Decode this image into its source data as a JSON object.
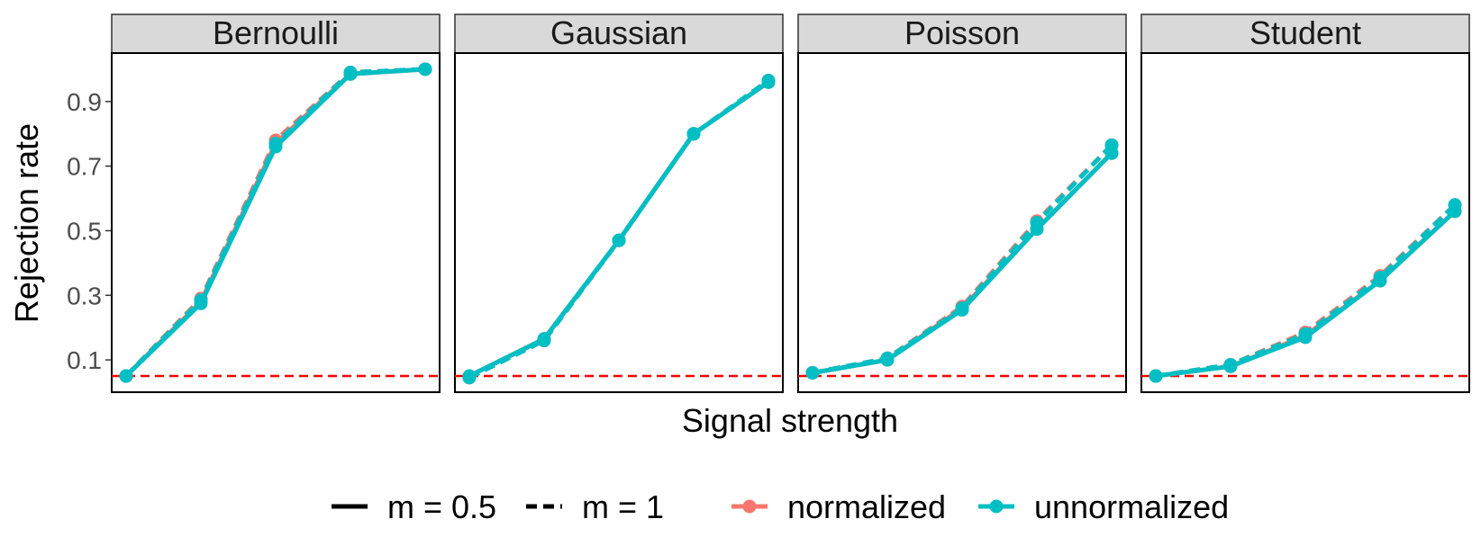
{
  "chart_data": {
    "type": "line",
    "ylabel": "Rejection rate",
    "xlabel": "Signal strength",
    "ylim": [
      0,
      1.05
    ],
    "yticks": [
      0.1,
      0.3,
      0.5,
      0.7,
      0.9
    ],
    "ytick_labels": [
      "0.1",
      "0.3",
      "0.5",
      "0.7",
      "0.9"
    ],
    "reference_line": {
      "y": 0.05,
      "color": "#ff0000",
      "style": "dashed"
    },
    "grid": false,
    "legend_position": "bottom",
    "legend": {
      "linetype": [
        {
          "label": "m = 0.5",
          "style": "solid"
        },
        {
          "label": "m = 1",
          "style": "dashed"
        }
      ],
      "color": [
        {
          "label": "normalized",
          "color": "#f8766d"
        },
        {
          "label": "unnormalized",
          "color": "#00bfc4"
        }
      ]
    },
    "colors": {
      "normalized": "#f8766d",
      "unnormalized": "#00bfc4",
      "strip_bg": "#d9d9d9"
    },
    "panels": [
      {
        "name": "Bernoulli",
        "x": [
          1,
          2,
          3,
          4,
          5
        ],
        "series": [
          {
            "name": "normalized, m = 0.5",
            "method": "normalized",
            "m": "0.5",
            "values": [
              0.05,
              0.28,
              0.77,
              0.985,
              1.0
            ]
          },
          {
            "name": "normalized, m = 1",
            "method": "normalized",
            "m": "1",
            "values": [
              0.05,
              0.29,
              0.78,
              0.99,
              1.0
            ]
          },
          {
            "name": "unnormalized, m = 0.5",
            "method": "unnormalized",
            "m": "0.5",
            "values": [
              0.05,
              0.275,
              0.76,
              0.985,
              1.0
            ]
          },
          {
            "name": "unnormalized, m = 1",
            "method": "unnormalized",
            "m": "1",
            "values": [
              0.05,
              0.285,
              0.77,
              0.99,
              1.0
            ]
          }
        ]
      },
      {
        "name": "Gaussian",
        "x": [
          1,
          2,
          3,
          4,
          5
        ],
        "series": [
          {
            "name": "normalized, m = 0.5",
            "method": "normalized",
            "m": "0.5",
            "values": [
              0.05,
              0.165,
              0.47,
              0.8,
              0.96
            ]
          },
          {
            "name": "normalized, m = 1",
            "method": "normalized",
            "m": "1",
            "values": [
              0.045,
              0.16,
              0.47,
              0.8,
              0.965
            ]
          },
          {
            "name": "unnormalized, m = 0.5",
            "method": "unnormalized",
            "m": "0.5",
            "values": [
              0.05,
              0.165,
              0.47,
              0.8,
              0.96
            ]
          },
          {
            "name": "unnormalized, m = 1",
            "method": "unnormalized",
            "m": "1",
            "values": [
              0.045,
              0.16,
              0.47,
              0.8,
              0.965
            ]
          }
        ]
      },
      {
        "name": "Poisson",
        "x": [
          1,
          2,
          3,
          4,
          5
        ],
        "series": [
          {
            "name": "normalized, m = 0.5",
            "method": "normalized",
            "m": "0.5",
            "values": [
              0.06,
              0.1,
              0.26,
              0.505,
              0.74
            ]
          },
          {
            "name": "normalized, m = 1",
            "method": "normalized",
            "m": "1",
            "values": [
              0.06,
              0.105,
              0.265,
              0.53,
              0.765
            ]
          },
          {
            "name": "unnormalized, m = 0.5",
            "method": "unnormalized",
            "m": "0.5",
            "values": [
              0.06,
              0.1,
              0.255,
              0.505,
              0.74
            ]
          },
          {
            "name": "unnormalized, m = 1",
            "method": "unnormalized",
            "m": "1",
            "values": [
              0.06,
              0.105,
              0.26,
              0.525,
              0.765
            ]
          }
        ]
      },
      {
        "name": "Student",
        "x": [
          1,
          2,
          3,
          4,
          5
        ],
        "series": [
          {
            "name": "normalized, m = 0.5",
            "method": "normalized",
            "m": "0.5",
            "values": [
              0.05,
              0.08,
              0.175,
              0.345,
              0.56
            ]
          },
          {
            "name": "normalized, m = 1",
            "method": "normalized",
            "m": "1",
            "values": [
              0.05,
              0.085,
              0.185,
              0.36,
              0.58
            ]
          },
          {
            "name": "unnormalized, m = 0.5",
            "method": "unnormalized",
            "m": "0.5",
            "values": [
              0.05,
              0.08,
              0.17,
              0.345,
              0.56
            ]
          },
          {
            "name": "unnormalized, m = 1",
            "method": "unnormalized",
            "m": "1",
            "values": [
              0.05,
              0.085,
              0.18,
              0.355,
              0.58
            ]
          }
        ]
      }
    ]
  }
}
